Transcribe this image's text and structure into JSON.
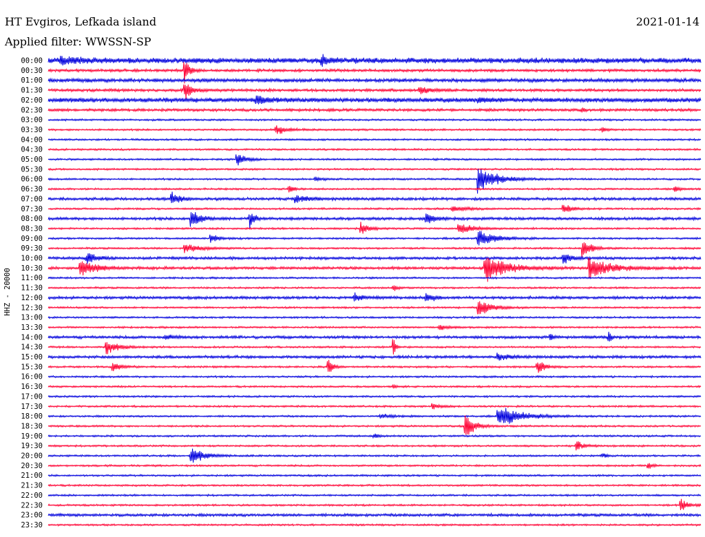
{
  "chart_data": {
    "type": "line",
    "title": "HT Evgiros, Lefkada island",
    "subtitle": "Applied filter: WWSSN-SP",
    "date": "2021-01-14",
    "ylabel": "HHZ - 20000",
    "xlabel": "",
    "grid": false,
    "row_interval_minutes": 30,
    "trace_colors": [
      "#0000dd",
      "#ff0033"
    ],
    "tick_labels": [
      "00:00",
      "00:30",
      "01:00",
      "01:30",
      "02:00",
      "02:30",
      "03:00",
      "03:30",
      "04:00",
      "04:30",
      "05:00",
      "05:30",
      "06:00",
      "06:30",
      "07:00",
      "07:30",
      "08:00",
      "08:30",
      "09:00",
      "09:30",
      "10:00",
      "10:30",
      "11:00",
      "11:30",
      "12:00",
      "12:30",
      "13:00",
      "13:30",
      "14:00",
      "14:30",
      "15:00",
      "15:30",
      "16:00",
      "16:30",
      "17:00",
      "17:30",
      "18:00",
      "18:30",
      "19:00",
      "19:30",
      "20:00",
      "20:30",
      "21:00",
      "21:30",
      "22:00",
      "22:30",
      "23:00",
      "23:30"
    ],
    "noise_level": [
      6,
      3,
      4,
      3,
      5,
      3,
      2,
      2,
      2,
      2,
      2,
      2,
      2,
      2,
      3,
      2,
      3,
      2,
      2,
      2,
      3,
      3,
      2,
      2,
      3,
      2,
      2,
      2,
      3,
      2,
      3,
      2,
      2,
      2,
      2,
      2,
      2,
      2,
      2,
      2,
      2,
      2,
      2,
      2,
      2,
      2,
      3,
      2
    ],
    "events": [
      {
        "row": 0,
        "pos": 0.02,
        "amp": 12,
        "dur": 0.04
      },
      {
        "row": 0,
        "pos": 0.42,
        "amp": 14,
        "dur": 0.02
      },
      {
        "row": 1,
        "pos": 0.21,
        "amp": 40,
        "dur": 0.01
      },
      {
        "row": 3,
        "pos": 0.21,
        "amp": 30,
        "dur": 0.015
      },
      {
        "row": 3,
        "pos": 0.57,
        "amp": 10,
        "dur": 0.03
      },
      {
        "row": 4,
        "pos": 0.32,
        "amp": 14,
        "dur": 0.03
      },
      {
        "row": 4,
        "pos": 0.66,
        "amp": 7,
        "dur": 0.02
      },
      {
        "row": 5,
        "pos": 0.82,
        "amp": 8,
        "dur": 0.005
      },
      {
        "row": 7,
        "pos": 0.35,
        "amp": 16,
        "dur": 0.025
      },
      {
        "row": 7,
        "pos": 0.85,
        "amp": 8,
        "dur": 0.01
      },
      {
        "row": 10,
        "pos": 0.29,
        "amp": 22,
        "dur": 0.02
      },
      {
        "row": 12,
        "pos": 0.41,
        "amp": 6,
        "dur": 0.02
      },
      {
        "row": 12,
        "pos": 0.66,
        "amp": 50,
        "dur": 0.04
      },
      {
        "row": 13,
        "pos": 0.37,
        "amp": 14,
        "dur": 0.01
      },
      {
        "row": 13,
        "pos": 0.96,
        "amp": 8,
        "dur": 0.015
      },
      {
        "row": 14,
        "pos": 0.19,
        "amp": 18,
        "dur": 0.02
      },
      {
        "row": 14,
        "pos": 0.38,
        "amp": 12,
        "dur": 0.03
      },
      {
        "row": 15,
        "pos": 0.62,
        "amp": 12,
        "dur": 0.03
      },
      {
        "row": 15,
        "pos": 0.79,
        "amp": 16,
        "dur": 0.02
      },
      {
        "row": 16,
        "pos": 0.22,
        "amp": 36,
        "dur": 0.02
      },
      {
        "row": 16,
        "pos": 0.31,
        "amp": 30,
        "dur": 0.01
      },
      {
        "row": 16,
        "pos": 0.58,
        "amp": 16,
        "dur": 0.02
      },
      {
        "row": 17,
        "pos": 0.48,
        "amp": 18,
        "dur": 0.02
      },
      {
        "row": 17,
        "pos": 0.63,
        "amp": 20,
        "dur": 0.03
      },
      {
        "row": 18,
        "pos": 0.25,
        "amp": 12,
        "dur": 0.02
      },
      {
        "row": 18,
        "pos": 0.66,
        "amp": 30,
        "dur": 0.04
      },
      {
        "row": 19,
        "pos": 0.21,
        "amp": 14,
        "dur": 0.04
      },
      {
        "row": 19,
        "pos": 0.82,
        "amp": 30,
        "dur": 0.02
      },
      {
        "row": 20,
        "pos": 0.06,
        "amp": 20,
        "dur": 0.02
      },
      {
        "row": 20,
        "pos": 0.79,
        "amp": 22,
        "dur": 0.015
      },
      {
        "row": 21,
        "pos": 0.05,
        "amp": 24,
        "dur": 0.04
      },
      {
        "row": 21,
        "pos": 0.67,
        "amp": 45,
        "dur": 0.05
      },
      {
        "row": 21,
        "pos": 0.83,
        "amp": 36,
        "dur": 0.05
      },
      {
        "row": 23,
        "pos": 0.53,
        "amp": 10,
        "dur": 0.01
      },
      {
        "row": 24,
        "pos": 0.47,
        "amp": 12,
        "dur": 0.02
      },
      {
        "row": 24,
        "pos": 0.58,
        "amp": 14,
        "dur": 0.02
      },
      {
        "row": 25,
        "pos": 0.66,
        "amp": 28,
        "dur": 0.03
      },
      {
        "row": 27,
        "pos": 0.6,
        "amp": 8,
        "dur": 0.02
      },
      {
        "row": 28,
        "pos": 0.18,
        "amp": 8,
        "dur": 0.02
      },
      {
        "row": 28,
        "pos": 0.77,
        "amp": 14,
        "dur": 0.005
      },
      {
        "row": 28,
        "pos": 0.86,
        "amp": 18,
        "dur": 0.005
      },
      {
        "row": 29,
        "pos": 0.09,
        "amp": 22,
        "dur": 0.03
      },
      {
        "row": 29,
        "pos": 0.53,
        "amp": 30,
        "dur": 0.005
      },
      {
        "row": 30,
        "pos": 0.69,
        "amp": 10,
        "dur": 0.03
      },
      {
        "row": 31,
        "pos": 0.1,
        "amp": 14,
        "dur": 0.02
      },
      {
        "row": 31,
        "pos": 0.43,
        "amp": 28,
        "dur": 0.01
      },
      {
        "row": 31,
        "pos": 0.75,
        "amp": 20,
        "dur": 0.02
      },
      {
        "row": 33,
        "pos": 0.53,
        "amp": 8,
        "dur": 0.005
      },
      {
        "row": 35,
        "pos": 0.59,
        "amp": 8,
        "dur": 0.02
      },
      {
        "row": 36,
        "pos": 0.51,
        "amp": 6,
        "dur": 0.03
      },
      {
        "row": 36,
        "pos": 0.69,
        "amp": 40,
        "dur": 0.05
      },
      {
        "row": 37,
        "pos": 0.64,
        "amp": 40,
        "dur": 0.02
      },
      {
        "row": 38,
        "pos": 0.5,
        "amp": 8,
        "dur": 0.01
      },
      {
        "row": 39,
        "pos": 0.81,
        "amp": 18,
        "dur": 0.015
      },
      {
        "row": 40,
        "pos": 0.22,
        "amp": 28,
        "dur": 0.03
      },
      {
        "row": 40,
        "pos": 0.85,
        "amp": 8,
        "dur": 0.01
      },
      {
        "row": 41,
        "pos": 0.92,
        "amp": 12,
        "dur": 0.01
      },
      {
        "row": 45,
        "pos": 0.97,
        "amp": 20,
        "dur": 0.015
      }
    ]
  }
}
